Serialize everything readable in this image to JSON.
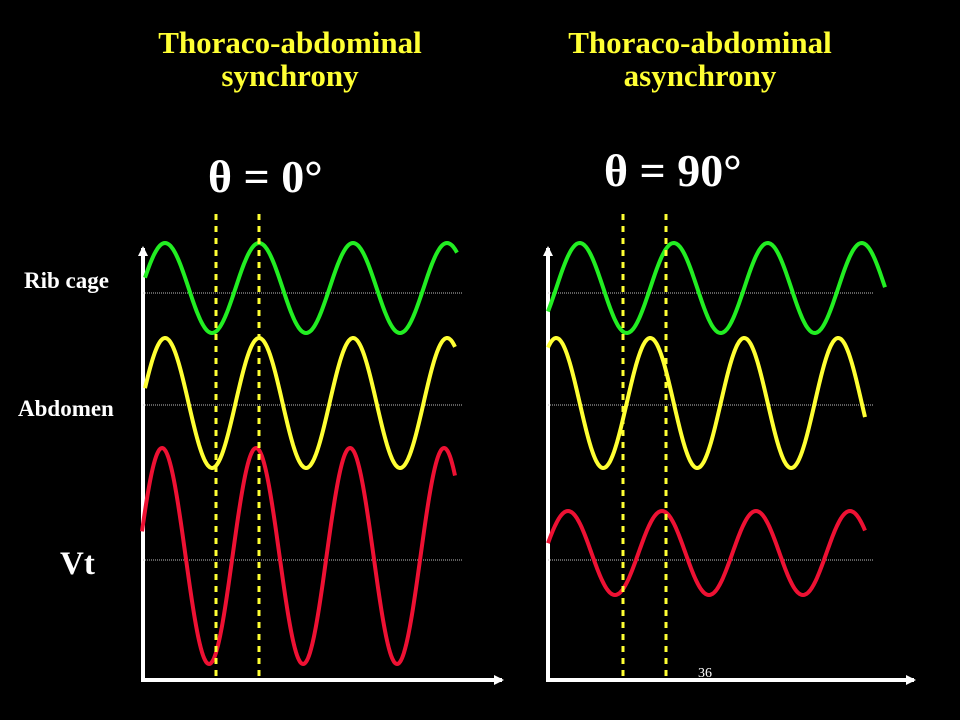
{
  "left_panel": {
    "title_line1": "Thoraco-abdominal",
    "title_line2": "synchrony",
    "theta": "θ = 0°",
    "phase_deg": 0
  },
  "right_panel": {
    "title_line1": "Thoraco-abdominal",
    "title_line2": "asynchrony",
    "theta": "θ = 90°",
    "phase_deg": 90
  },
  "labels": {
    "rib_cage": "Rib cage",
    "abdomen": "Abdomen",
    "vt": "Vt"
  },
  "page_number": "36",
  "colors": {
    "background": "#000000",
    "title": "#ffff33",
    "rib_cage": "#22ee22",
    "abdomen": "#ffff33",
    "vt": "#ee1133",
    "axis": "#ffffff",
    "marker": "#ffff33"
  }
}
